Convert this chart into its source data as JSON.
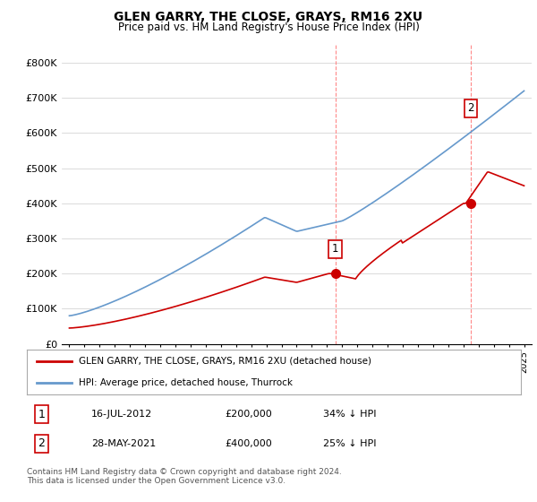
{
  "title": "GLEN GARRY, THE CLOSE, GRAYS, RM16 2XU",
  "subtitle": "Price paid vs. HM Land Registry's House Price Index (HPI)",
  "ylim": [
    0,
    850000
  ],
  "yticks": [
    0,
    100000,
    200000,
    300000,
    400000,
    500000,
    600000,
    700000,
    800000
  ],
  "red_line_color": "#cc0000",
  "blue_line_color": "#6699cc",
  "annotation1_price": 200000,
  "annotation2_price": 400000,
  "legend_red": "GLEN GARRY, THE CLOSE, GRAYS, RM16 2XU (detached house)",
  "legend_blue": "HPI: Average price, detached house, Thurrock",
  "table_row1": [
    "1",
    "16-JUL-2012",
    "£200,000",
    "34% ↓ HPI"
  ],
  "table_row2": [
    "2",
    "28-MAY-2021",
    "£400,000",
    "25% ↓ HPI"
  ],
  "footer": "Contains HM Land Registry data © Crown copyright and database right 2024.\nThis data is licensed under the Open Government Licence v3.0.",
  "vline_color": "#ff8888",
  "background_color": "#ffffff"
}
